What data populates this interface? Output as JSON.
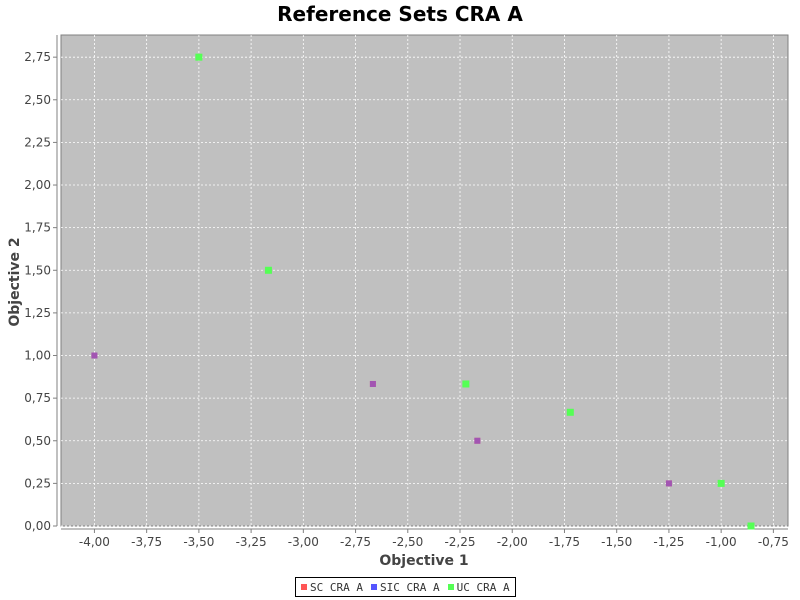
{
  "chart_data": {
    "type": "scatter",
    "title": "Reference Sets CRA A",
    "xlabel": "Objective 1",
    "ylabel": "Objective 2",
    "xlim": [
      -4.16,
      -0.68
    ],
    "ylim": [
      0,
      2.88
    ],
    "xticks": [
      -4.0,
      -3.75,
      -3.5,
      -3.25,
      -3.0,
      -2.75,
      -2.5,
      -2.25,
      -2.0,
      -1.75,
      -1.5,
      -1.25,
      -1.0,
      -0.75
    ],
    "xtick_labels": [
      "-4,00",
      "-3,75",
      "-3,50",
      "-3,25",
      "-3,00",
      "-2,75",
      "-2,50",
      "-2,25",
      "-2,00",
      "-1,75",
      "-1,50",
      "-1,25",
      "-1,00",
      "-0,75"
    ],
    "yticks": [
      0,
      0.25,
      0.5,
      0.75,
      1.0,
      1.25,
      1.5,
      1.75,
      2.0,
      2.25,
      2.5,
      2.75
    ],
    "ytick_labels": [
      "0,00",
      "0,25",
      "0,50",
      "0,75",
      "1,00",
      "1,25",
      "1,50",
      "1,75",
      "2,00",
      "2,25",
      "2,50",
      "2,75"
    ],
    "grid": true,
    "legend_position": "bottom-center",
    "plot_background": "#c0c0c0",
    "series": [
      {
        "name": "SC CRA A",
        "color": "#ff5555",
        "points": [
          [
            -4.0,
            1.0
          ],
          [
            -2.667,
            0.833
          ],
          [
            -2.167,
            0.5
          ],
          [
            -1.25,
            0.25
          ],
          [
            -0.857,
            0.0
          ]
        ]
      },
      {
        "name": "SIC CRA A",
        "color": "#5555ff",
        "points": [
          [
            -4.0,
            1.0
          ],
          [
            -2.667,
            0.833
          ],
          [
            -2.167,
            0.5
          ],
          [
            -1.25,
            0.25
          ],
          [
            -0.857,
            0.0
          ]
        ]
      },
      {
        "name": "UC CRA A",
        "color": "#55ff55",
        "points": [
          [
            -3.5,
            2.75
          ],
          [
            -3.167,
            1.5
          ],
          [
            -2.222,
            0.833
          ],
          [
            -1.722,
            0.667
          ],
          [
            -1.0,
            0.25
          ],
          [
            -0.857,
            0.0
          ]
        ]
      }
    ]
  }
}
